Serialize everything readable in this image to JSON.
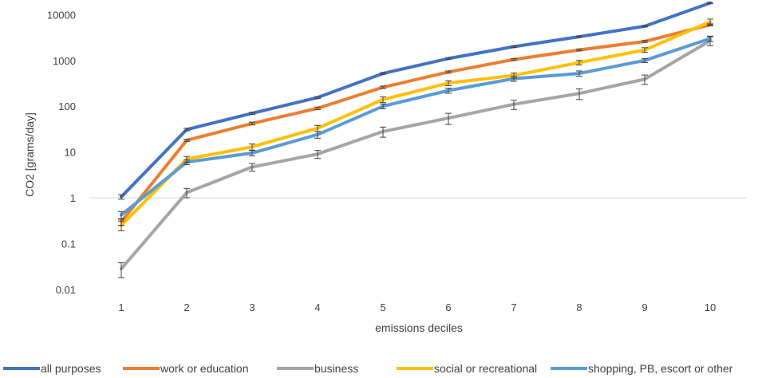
{
  "chart_data": {
    "type": "line",
    "title": "",
    "xlabel": "emissions deciles",
    "ylabel": "CO2 [grams/day]",
    "yscale": "log",
    "ylim": [
      0.005,
      20000
    ],
    "x": [
      1,
      2,
      3,
      4,
      5,
      6,
      7,
      8,
      9,
      10
    ],
    "x_tick_labels": [
      "1",
      "2",
      "3",
      "4",
      "5",
      "6",
      "7",
      "8",
      "9",
      "10"
    ],
    "y_tick_values": [
      0.01,
      0.1,
      1,
      10,
      100,
      1000,
      10000
    ],
    "y_tick_labels": [
      "0.01",
      "0.1",
      "1",
      "10",
      "100",
      "1000",
      "10000"
    ],
    "reference_line": 1,
    "legend_position": "bottom",
    "error_bars": true,
    "series": [
      {
        "name": "all purposes",
        "color": "#4472c4",
        "values": [
          1.05,
          31,
          70,
          155,
          520,
          1100,
          2000,
          3300,
          5600,
          18000
        ],
        "error": [
          0.12,
          2,
          4,
          8,
          25,
          50,
          80,
          120,
          200,
          600
        ]
      },
      {
        "name": "work or education",
        "color": "#ed7d31",
        "values": [
          0.3,
          18,
          42,
          90,
          260,
          560,
          1050,
          1700,
          2600,
          6000
        ],
        "error": [
          0.05,
          1,
          3,
          6,
          15,
          30,
          50,
          80,
          120,
          300
        ]
      },
      {
        "name": "business",
        "color": "#a5a5a5",
        "values": [
          0.028,
          1.3,
          4.7,
          9,
          28,
          55,
          110,
          190,
          390,
          2700
        ],
        "error": [
          0.01,
          0.3,
          0.9,
          1.8,
          7,
          15,
          25,
          50,
          90,
          600
        ]
      },
      {
        "name": "social or recreational",
        "color": "#ffc000",
        "values": [
          0.25,
          7,
          13,
          33,
          140,
          320,
          470,
          900,
          1700,
          7000
        ],
        "error": [
          0.06,
          1,
          2,
          5,
          20,
          40,
          60,
          100,
          200,
          1000
        ]
      },
      {
        "name": "shopping, PB, escort or other",
        "color": "#5b9bd5",
        "values": [
          0.42,
          6,
          9.5,
          24,
          100,
          220,
          400,
          520,
          1000,
          3000
        ],
        "error": [
          0.08,
          0.7,
          1.3,
          4,
          12,
          28,
          50,
          70,
          100,
          400
        ]
      }
    ]
  }
}
